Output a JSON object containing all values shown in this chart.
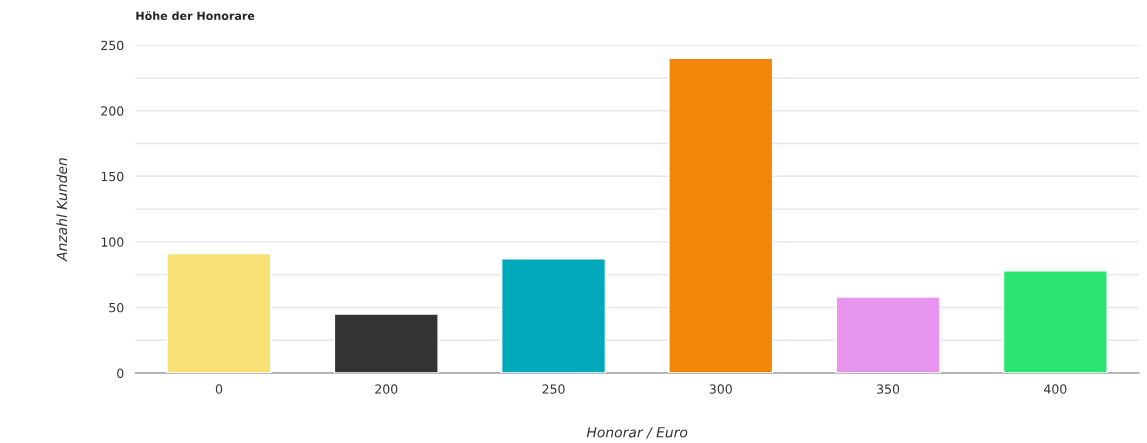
{
  "chart_data": {
    "type": "bar",
    "title": "Höhe der Honorare",
    "xlabel": "Honorar / Euro",
    "ylabel": "Anzahl Kunden",
    "categories": [
      "0",
      "200",
      "250",
      "300",
      "350",
      "400"
    ],
    "values": [
      91,
      45,
      87,
      240,
      58,
      78
    ],
    "colors": [
      "#f9e076",
      "#333333",
      "#00a9bc",
      "#f0860a",
      "#e795ee",
      "#2ce472"
    ],
    "ylim": [
      0,
      250
    ],
    "yticks": [
      0,
      {
        "value": 25,
        "label": null
      },
      50,
      {
        "value": 75,
        "label": null
      },
      100,
      {
        "value": 125,
        "label": null
      },
      150,
      {
        "value": 175,
        "label": null
      },
      200,
      {
        "value": 225,
        "label": null
      },
      250
    ],
    "grid": "y"
  }
}
